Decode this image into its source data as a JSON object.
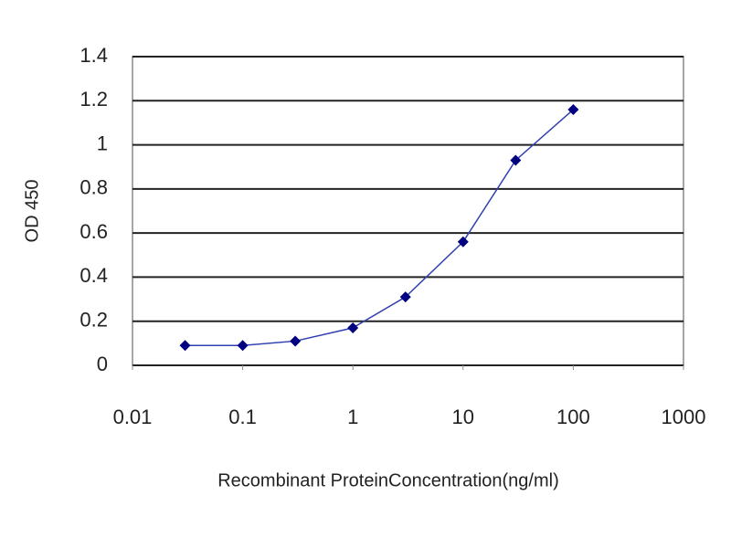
{
  "chart_data": {
    "type": "line",
    "x": [
      0.03,
      0.1,
      0.3,
      1,
      3,
      10,
      30,
      100
    ],
    "values": [
      0.09,
      0.09,
      0.11,
      0.17,
      0.31,
      0.56,
      0.93,
      1.16
    ],
    "color": "#000080",
    "line_color": "#3040b0",
    "xscale": "log",
    "xlim": [
      0.01,
      1000
    ],
    "xticks": [
      0.01,
      0.1,
      1,
      10,
      100,
      1000
    ],
    "ylim": [
      0,
      1.4
    ],
    "yticks": [
      0,
      0.2,
      0.4,
      0.6,
      0.8,
      1,
      1.2,
      1.4
    ],
    "grid": true,
    "xlabel": "Recombinant ProteinConcentration(ng/ml)",
    "ylabel": "OD 450"
  }
}
